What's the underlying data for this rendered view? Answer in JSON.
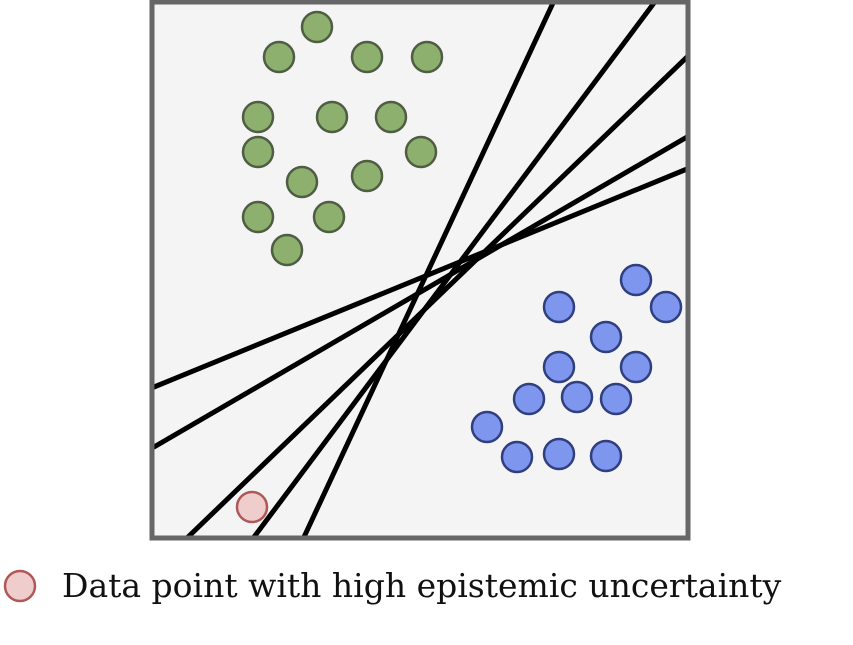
{
  "colors": {
    "plot_background": "#f4f4f4",
    "plot_border": "#666666",
    "green_point_fill": "#8db06e",
    "green_point_stroke": "#4f5e43",
    "blue_point_fill": "#7f96ef",
    "blue_point_stroke": "#2f3f7f",
    "uncertain_point_fill": "#efcdcd",
    "uncertain_point_stroke": "#b05858",
    "decision_boundary": "#000000"
  },
  "classes": [
    {
      "id": "green",
      "points": [
        [
          317,
          27
        ],
        [
          279,
          57
        ],
        [
          367,
          57
        ],
        [
          427,
          57
        ],
        [
          258,
          117
        ],
        [
          332,
          117
        ],
        [
          391,
          117
        ],
        [
          258,
          152
        ],
        [
          421,
          152
        ],
        [
          302,
          182
        ],
        [
          367,
          176
        ],
        [
          258,
          217
        ],
        [
          329,
          217
        ],
        [
          287,
          250
        ]
      ]
    },
    {
      "id": "blue",
      "points": [
        [
          636,
          280
        ],
        [
          559,
          307
        ],
        [
          666,
          307
        ],
        [
          606,
          337
        ],
        [
          559,
          367
        ],
        [
          636,
          367
        ],
        [
          529,
          399
        ],
        [
          577,
          397
        ],
        [
          616,
          399
        ],
        [
          487,
          427
        ],
        [
          517,
          457
        ],
        [
          559,
          454
        ],
        [
          606,
          456
        ]
      ]
    }
  ],
  "uncertain_point": [
    252,
    507
  ],
  "decision_boundaries": [
    [
      [
        304,
        537
      ],
      [
        553,
        3
      ]
    ],
    [
      [
        254,
        537
      ],
      [
        654,
        3
      ]
    ],
    [
      [
        188,
        537
      ],
      [
        687,
        57
      ]
    ],
    [
      [
        154,
        447
      ],
      [
        687,
        137
      ]
    ],
    [
      [
        154,
        387
      ],
      [
        687,
        169
      ]
    ]
  ],
  "legend": {
    "icon": "uncertain-point-circle",
    "label": "Data point with high epistemic uncertainty"
  }
}
